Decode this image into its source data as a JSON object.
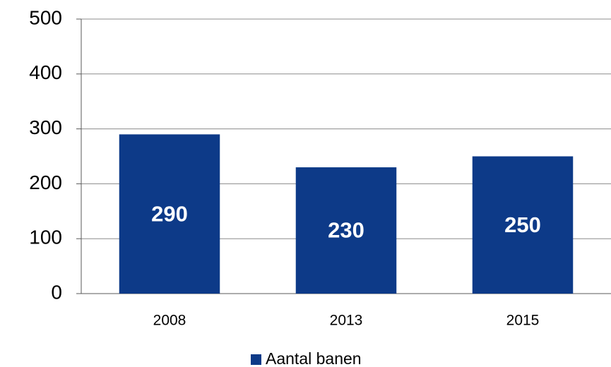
{
  "chart_data": {
    "type": "bar",
    "categories": [
      "2008",
      "2013",
      "2015"
    ],
    "series": [
      {
        "name": "Aantal banen",
        "color": "#0d3a88",
        "values": [
          290,
          230,
          250
        ]
      }
    ],
    "ylim": [
      0,
      500
    ],
    "yticks": [
      0,
      100,
      200,
      300,
      400,
      500
    ],
    "grid": true,
    "legend": "bottom"
  }
}
